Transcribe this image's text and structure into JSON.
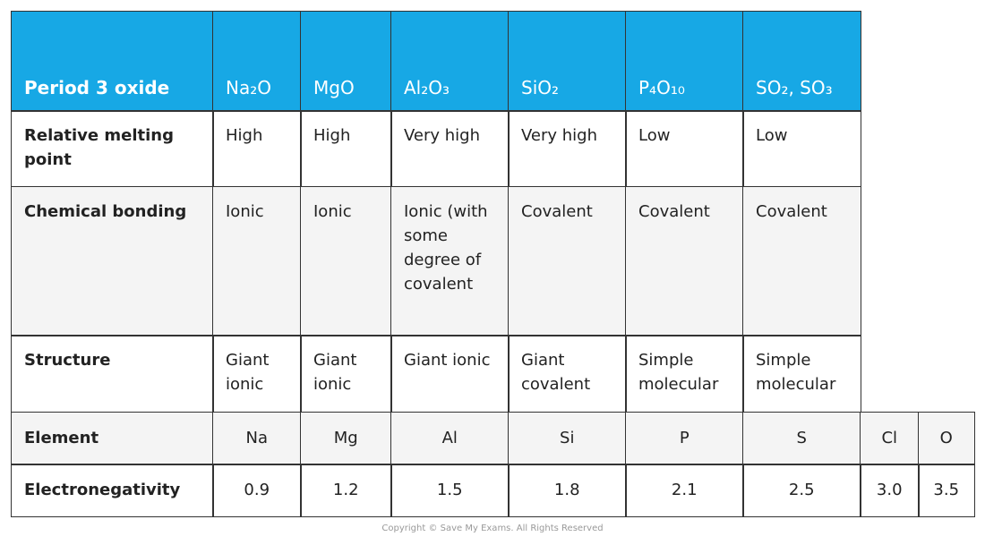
{
  "table": {
    "header": [
      "Period 3 oxide",
      "Na₂O",
      "MgO",
      "Al₂O₃",
      "SiO₂",
      "P₄O₁₀",
      "SO₂, SO₃"
    ],
    "rows": [
      [
        "Relative melting point",
        "High",
        "High",
        "Very high",
        "Very high",
        "Low",
        "Low"
      ],
      [
        "Chemical bonding",
        "Ionic",
        "Ionic",
        "Ionic (with some degree of covalent",
        "Covalent",
        "Covalent",
        "Covalent"
      ],
      [
        "Structure",
        "Giant ionic",
        "Giant ionic",
        "Giant ionic",
        "Giant covalent",
        "Simple molecular",
        "Simple molecular"
      ],
      [
        "Element",
        "Na",
        "Mg",
        "Al",
        "Si",
        "P",
        "S",
        "Cl",
        "O"
      ],
      [
        "Electronegativity",
        "0.9",
        "1.2",
        "1.5",
        "1.8",
        "2.1",
        "2.5",
        "3.0",
        "3.5"
      ]
    ]
  },
  "footer": "Copyright © Save My Exams. All Rights Reserved"
}
